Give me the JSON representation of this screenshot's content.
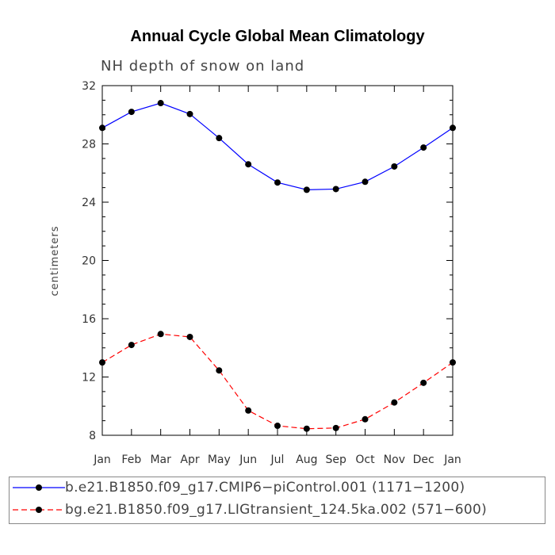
{
  "chart_data": {
    "type": "line",
    "title": "Annual Cycle Global Mean Climatology",
    "subtitle": "NH depth of snow on land",
    "ylabel": "centimeters",
    "xlabel": "",
    "categories": [
      "Jan",
      "Feb",
      "Mar",
      "Apr",
      "May",
      "Jun",
      "Jul",
      "Aug",
      "Sep",
      "Oct",
      "Nov",
      "Dec",
      "Jan"
    ],
    "ylim": [
      8,
      32
    ],
    "yticks": [
      8,
      12,
      16,
      20,
      24,
      28,
      32
    ],
    "ytick_labels": [
      "8",
      "12",
      "16",
      "20",
      "24",
      "28",
      "32"
    ],
    "series": [
      {
        "name": "b.e21.B1850.f09_g17.CMIP6−piControl.001 (1171−1200)",
        "color": "#0000ff",
        "line_style": "solid",
        "marker": "filled-circle",
        "values": [
          29.1,
          30.2,
          30.8,
          30.05,
          28.4,
          26.6,
          25.35,
          24.85,
          24.9,
          25.4,
          26.45,
          27.75,
          29.1
        ]
      },
      {
        "name": "bg.e21.B1850.f09_g17.LIGtransient_124.5ka.002 (571−600)",
        "color": "#ff0000",
        "line_style": "dashed",
        "marker": "filled-circle",
        "values": [
          13.0,
          14.2,
          14.95,
          14.75,
          12.45,
          9.7,
          8.65,
          8.45,
          8.5,
          9.1,
          10.25,
          11.6,
          13.0
        ]
      }
    ],
    "grid": false,
    "legend_position": "bottom"
  }
}
